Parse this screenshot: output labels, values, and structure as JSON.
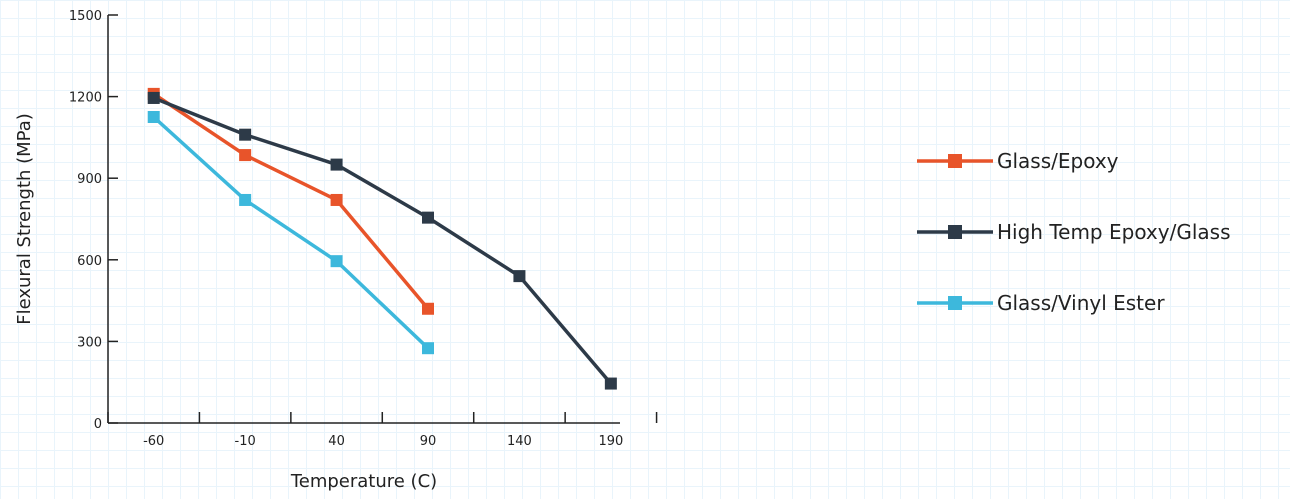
{
  "chart_data": {
    "type": "line",
    "xlabel": "Temperature (C)",
    "ylabel": "Flexural Strength (MPa)",
    "x": [
      -60,
      -10,
      40,
      90,
      140,
      190
    ],
    "xlim": [
      -85,
      195
    ],
    "ylim": [
      0,
      1500
    ],
    "yticks": [
      0,
      300,
      600,
      900,
      1200,
      1500
    ],
    "grid": false,
    "legend_position": "right",
    "series": [
      {
        "name": "Glass/Epoxy",
        "color": "#e8542a",
        "marker": "square",
        "x": [
          -60,
          -10,
          40,
          90
        ],
        "y": [
          1210,
          985,
          820,
          420
        ]
      },
      {
        "name": "High Temp Epoxy/Glass",
        "color": "#2d3a48",
        "marker": "square",
        "x": [
          -60,
          -10,
          40,
          90,
          140,
          190
        ],
        "y": [
          1195,
          1060,
          950,
          755,
          540,
          145
        ]
      },
      {
        "name": "Glass/Vinyl Ester",
        "color": "#3db8dc",
        "marker": "square",
        "x": [
          -60,
          -10,
          40,
          90
        ],
        "y": [
          1125,
          820,
          595,
          275
        ]
      }
    ]
  }
}
